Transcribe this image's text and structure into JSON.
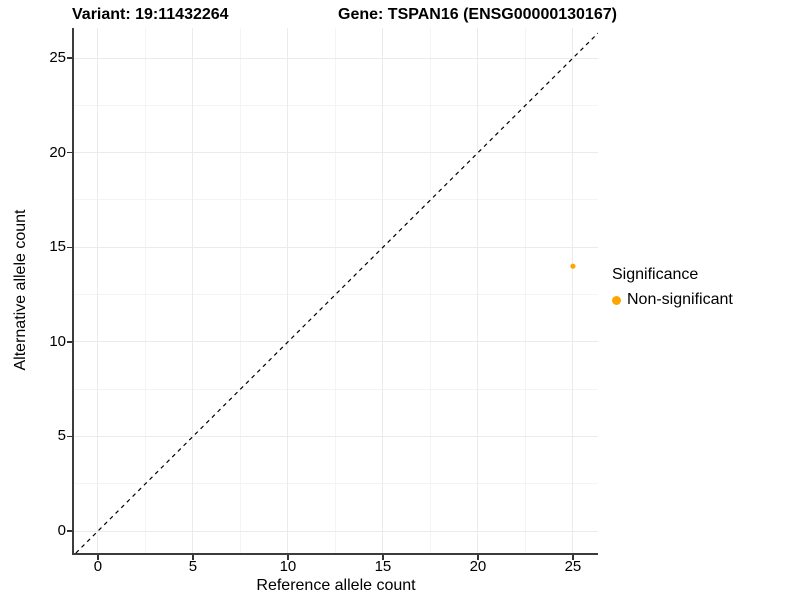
{
  "chart_data": {
    "type": "scatter",
    "titles": {
      "variant": "Variant: 19:11432264",
      "gene": "Gene: TSPAN16 (ENSG00000130167)"
    },
    "xlabel": "Reference allele count",
    "ylabel": "Alternative allele count",
    "x_ticks": [
      0,
      5,
      10,
      15,
      20,
      25
    ],
    "y_ticks": [
      0,
      5,
      10,
      15,
      20,
      25
    ],
    "x_minor_ticks": [
      2.5,
      7.5,
      12.5,
      17.5,
      22.5
    ],
    "y_minor_ticks": [
      2.5,
      7.5,
      12.5,
      17.5,
      22.5
    ],
    "xlim": [
      -1.26,
      26.32
    ],
    "ylim": [
      -1.16,
      26.59
    ],
    "grid": true,
    "points": [
      {
        "x": 25,
        "y": 14,
        "series": "Non-significant"
      }
    ],
    "reference_line": {
      "slope": 1,
      "intercept": 0,
      "style": "dashed",
      "color": "#000000"
    },
    "legend": {
      "title": "Significance",
      "position": "right",
      "entries": [
        {
          "label": "Non-significant",
          "color": "#FFA500"
        }
      ]
    },
    "colors": {
      "point": "#FFA500",
      "axis_line": "#3c3c3c",
      "tick_mark": "#333333",
      "grid_major": "#EBEBEB",
      "grid_minor": "#F4F4F4",
      "text": "#000000",
      "background": "#FFFFFF"
    }
  }
}
